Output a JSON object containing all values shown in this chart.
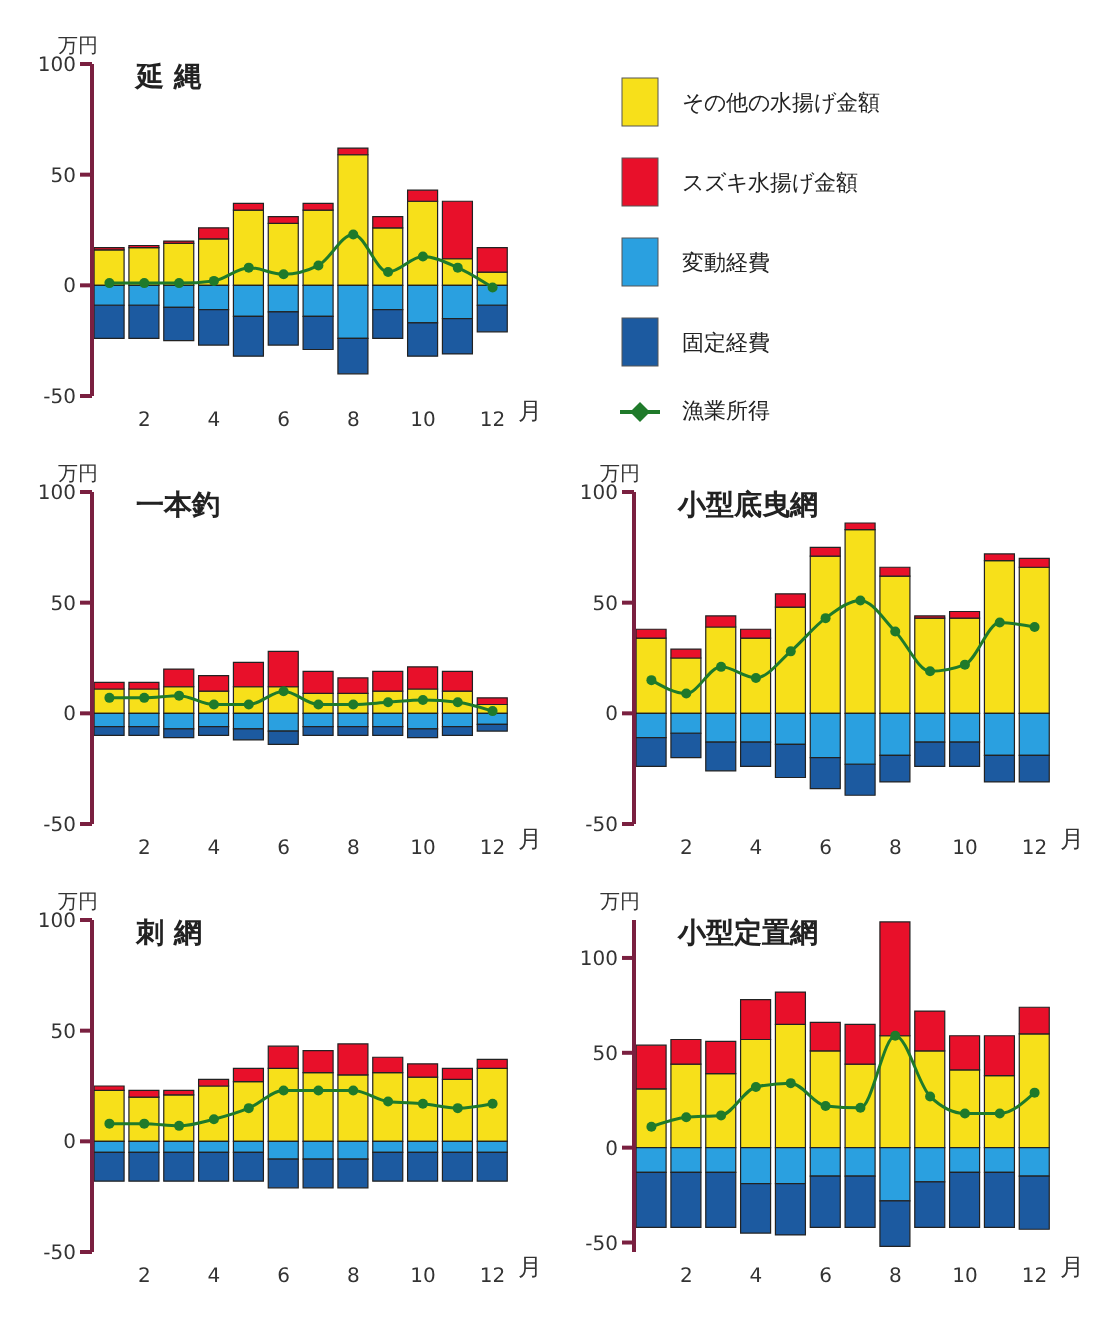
{
  "chart_data": [
    {
      "type": "bar",
      "title": "延 縄",
      "ylabel": "万円",
      "xlabel": "月",
      "stacked": true,
      "legend": "right",
      "marker": "circle",
      "categories": [
        null,
        "2",
        null,
        "4",
        null,
        "6",
        null,
        "8",
        null,
        "10",
        null,
        "12"
      ],
      "ylim": [
        -50,
        100
      ],
      "yticks": [
        {
          "value": 100,
          "label": "100"
        },
        {
          "value": 50,
          "label": "50"
        },
        {
          "value": 0,
          "label": "0"
        },
        {
          "value": -50,
          "label": "-50"
        }
      ],
      "series": [
        {
          "name": "その他の水揚げ金額",
          "color": "#f7e01a",
          "values": [
            16,
            17,
            19,
            21,
            34,
            28,
            34,
            59,
            26,
            38,
            12,
            6
          ]
        },
        {
          "name": "スズキ水揚げ金額",
          "color": "#e8102a",
          "values": [
            1,
            1,
            1,
            5,
            3,
            3,
            3,
            3,
            5,
            5,
            26,
            11
          ]
        },
        {
          "name": "変動経費",
          "color": "#2aa0e0",
          "values": [
            -9,
            -9,
            -10,
            -11,
            -14,
            -12,
            -14,
            -24,
            -11,
            -17,
            -15,
            -9
          ]
        },
        {
          "name": "固定経費",
          "color": "#1c5aa0",
          "values": [
            -15,
            -15,
            -15,
            -16,
            -18,
            -15,
            -15,
            -16,
            -13,
            -15,
            -16,
            -12
          ]
        },
        {
          "name": "漁業所得",
          "type": "line",
          "color": "#1f7a2a",
          "values": [
            1,
            1,
            1,
            2,
            8,
            5,
            9,
            23,
            6,
            13,
            8,
            -1
          ]
        }
      ]
    },
    {
      "type": "bar",
      "title": "一本釣",
      "ylabel": "万円",
      "xlabel": "月",
      "stacked": true,
      "marker": "circle",
      "categories": [
        null,
        "2",
        null,
        "4",
        null,
        "6",
        null,
        "8",
        null,
        "10",
        null,
        "12"
      ],
      "ylim": [
        -50,
        100
      ],
      "yticks": [
        {
          "value": 100,
          "label": "100"
        },
        {
          "value": 50,
          "label": "50"
        },
        {
          "value": 0,
          "label": "0"
        },
        {
          "value": -50,
          "label": "-50"
        }
      ],
      "series": [
        {
          "color": "#f7e01a",
          "values": [
            11,
            11,
            12,
            10,
            12,
            12,
            9,
            9,
            10,
            11,
            10,
            4
          ]
        },
        {
          "color": "#e8102a",
          "values": [
            3,
            3,
            8,
            7,
            11,
            16,
            10,
            7,
            9,
            10,
            9,
            3
          ]
        },
        {
          "color": "#2aa0e0",
          "values": [
            -6,
            -6,
            -7,
            -6,
            -7,
            -8,
            -6,
            -6,
            -6,
            -7,
            -6,
            -5
          ]
        },
        {
          "color": "#1c5aa0",
          "values": [
            -4,
            -4,
            -4,
            -4,
            -5,
            -6,
            -4,
            -4,
            -4,
            -4,
            -4,
            -3
          ]
        },
        {
          "type": "line",
          "color": "#1f7a2a",
          "values": [
            7,
            7,
            8,
            4,
            4,
            10,
            4,
            4,
            5,
            6,
            5,
            1
          ]
        }
      ]
    },
    {
      "type": "bar",
      "title": "小型底曳網",
      "ylabel": "万円",
      "xlabel": "月",
      "stacked": true,
      "marker": "circle",
      "categories": [
        null,
        "2",
        null,
        "4",
        null,
        "6",
        null,
        "8",
        null,
        "10",
        null,
        "12"
      ],
      "ylim": [
        -50,
        100
      ],
      "yticks": [
        {
          "value": 100,
          "label": "100"
        },
        {
          "value": 50,
          "label": "50"
        },
        {
          "value": 0,
          "label": "0"
        },
        {
          "value": -50,
          "label": "-50"
        }
      ],
      "series": [
        {
          "color": "#f7e01a",
          "values": [
            34,
            25,
            39,
            34,
            48,
            71,
            83,
            62,
            43,
            43,
            69,
            66
          ]
        },
        {
          "color": "#e8102a",
          "values": [
            4,
            4,
            5,
            4,
            6,
            4,
            3,
            4,
            1,
            3,
            3,
            4
          ]
        },
        {
          "color": "#2aa0e0",
          "values": [
            -11,
            -9,
            -13,
            -13,
            -14,
            -20,
            -23,
            -19,
            -13,
            -13,
            -19,
            -19
          ]
        },
        {
          "color": "#1c5aa0",
          "values": [
            -13,
            -11,
            -13,
            -11,
            -15,
            -14,
            -14,
            -12,
            -11,
            -11,
            -12,
            -12
          ]
        },
        {
          "type": "line",
          "color": "#1f7a2a",
          "values": [
            15,
            9,
            21,
            16,
            28,
            43,
            51,
            37,
            19,
            22,
            41,
            39
          ]
        }
      ]
    },
    {
      "type": "bar",
      "title": "刺 網",
      "ylabel": "万円",
      "xlabel": "月",
      "stacked": true,
      "marker": "circle",
      "categories": [
        null,
        "2",
        null,
        "4",
        null,
        "6",
        null,
        "8",
        null,
        "10",
        null,
        "12"
      ],
      "ylim": [
        -50,
        100
      ],
      "yticks": [
        {
          "value": 100,
          "label": "100"
        },
        {
          "value": 50,
          "label": "50"
        },
        {
          "value": 0,
          "label": "0"
        },
        {
          "value": -50,
          "label": "-50"
        }
      ],
      "series": [
        {
          "color": "#f7e01a",
          "values": [
            23,
            20,
            21,
            25,
            27,
            33,
            31,
            30,
            31,
            29,
            28,
            33
          ]
        },
        {
          "color": "#e8102a",
          "values": [
            2,
            3,
            2,
            3,
            6,
            10,
            10,
            14,
            7,
            6,
            5,
            4
          ]
        },
        {
          "color": "#2aa0e0",
          "values": [
            -5,
            -5,
            -5,
            -5,
            -5,
            -8,
            -8,
            -8,
            -5,
            -5,
            -5,
            -5
          ]
        },
        {
          "color": "#1c5aa0",
          "values": [
            -13,
            -13,
            -13,
            -13,
            -13,
            -13,
            -13,
            -13,
            -13,
            -13,
            -13,
            -13
          ]
        },
        {
          "type": "line",
          "color": "#1f7a2a",
          "values": [
            8,
            8,
            7,
            10,
            15,
            23,
            23,
            23,
            18,
            17,
            15,
            17
          ]
        }
      ]
    },
    {
      "type": "bar",
      "title": "小型定置網",
      "ylabel": "万円",
      "xlabel": "月",
      "stacked": true,
      "marker": "circle",
      "categories": [
        null,
        "2",
        null,
        "4",
        null,
        "6",
        null,
        "8",
        null,
        "10",
        null,
        "12"
      ],
      "ylim": [
        -55,
        120
      ],
      "yticks": [
        {
          "value": 100,
          "label": "100"
        },
        {
          "value": 50,
          "label": "50"
        },
        {
          "value": 0,
          "label": "0"
        },
        {
          "value": -50,
          "label": "-50"
        }
      ],
      "series": [
        {
          "color": "#f7e01a",
          "values": [
            31,
            44,
            39,
            57,
            65,
            51,
            44,
            59,
            51,
            41,
            38,
            60
          ]
        },
        {
          "color": "#e8102a",
          "values": [
            23,
            13,
            17,
            21,
            17,
            15,
            21,
            60,
            21,
            18,
            21,
            14
          ]
        },
        {
          "color": "#2aa0e0",
          "values": [
            -13,
            -13,
            -13,
            -19,
            -19,
            -15,
            -15,
            -28,
            -18,
            -13,
            -13,
            -15
          ]
        },
        {
          "color": "#1c5aa0",
          "values": [
            -29,
            -29,
            -29,
            -26,
            -27,
            -27,
            -27,
            -24,
            -24,
            -29,
            -29,
            -28
          ]
        },
        {
          "type": "line",
          "color": "#1f7a2a",
          "values": [
            11,
            16,
            17,
            32,
            34,
            22,
            21,
            59,
            27,
            18,
            18,
            29
          ]
        }
      ]
    }
  ]
}
